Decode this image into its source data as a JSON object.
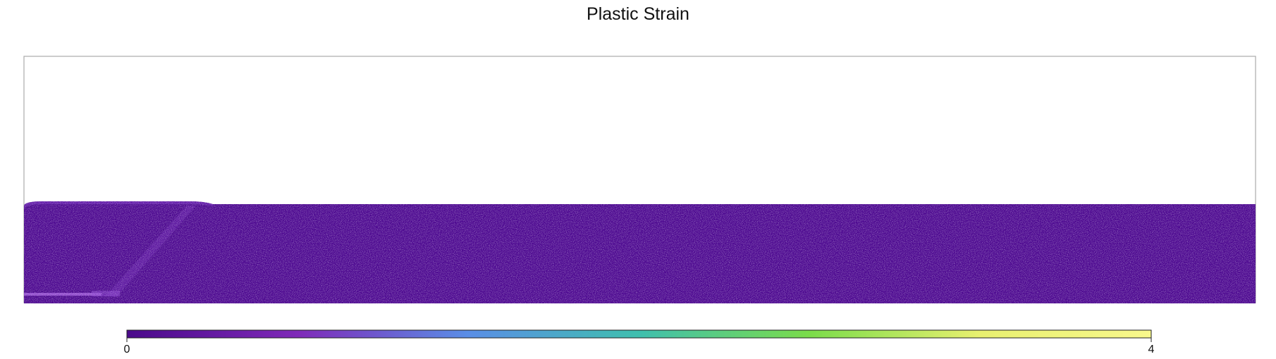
{
  "chart_data": {
    "type": "heatmap",
    "title": "Plastic Strain",
    "xlabel": "",
    "ylabel": "",
    "colorbar": {
      "min": 0,
      "max": 4,
      "ticks": [
        "0",
        "4"
      ],
      "colormap": "plasma-like",
      "stops": [
        "#4a0a8a",
        "#7f2ab8",
        "#5a8ee6",
        "#3fbfae",
        "#7bdc4a",
        "#e8f070",
        "#f8f88c"
      ]
    },
    "field": {
      "background_value": 0.05,
      "background_color": "#4b068f",
      "sheared_zone_color": "#6e24b3",
      "surface_profile": [
        [
          0.0,
          0.0
        ],
        [
          0.1,
          0.0
        ],
        [
          0.15,
          0.02
        ],
        [
          1.0,
          0.02
        ]
      ]
    },
    "grid": false,
    "legend": "bottom-colorbar"
  },
  "colors": {
    "frame": "#aaaaaa",
    "colorbar_border": "#222222"
  }
}
